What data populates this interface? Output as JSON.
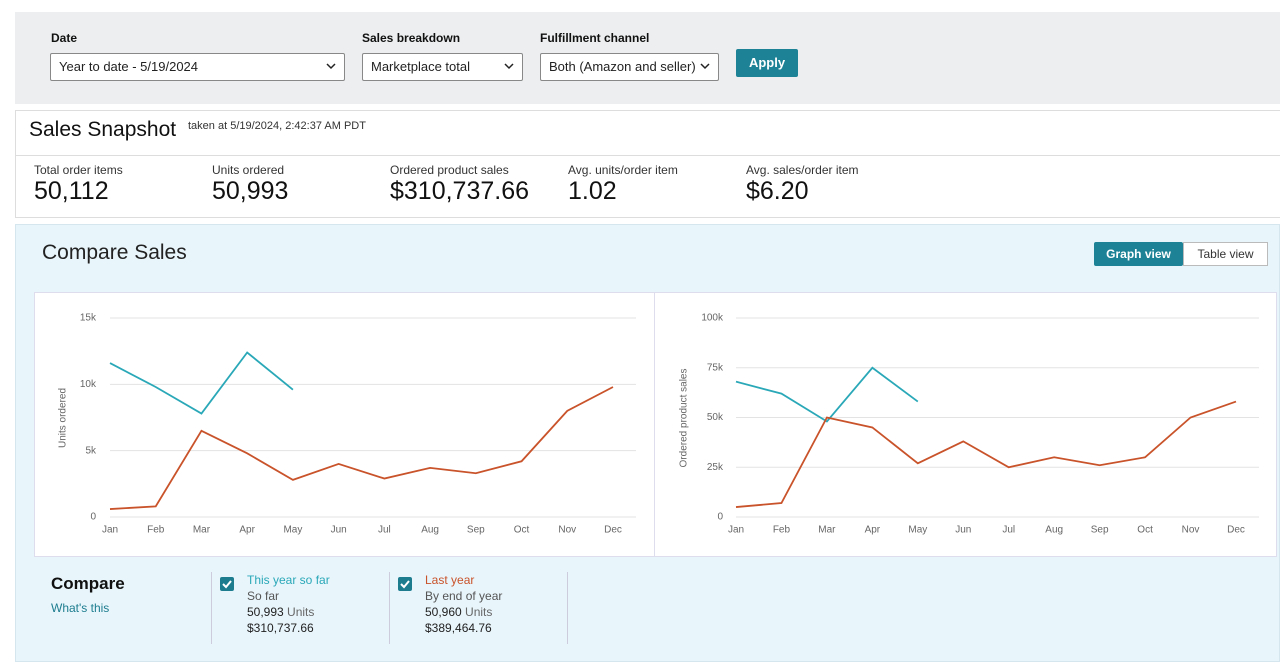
{
  "filters": {
    "date": {
      "label": "Date",
      "value": "Year to date - 5/19/2024"
    },
    "breakdown": {
      "label": "Sales breakdown",
      "value": "Marketplace total"
    },
    "channel": {
      "label": "Fulfillment channel",
      "value": "Both (Amazon and seller)"
    },
    "apply": "Apply"
  },
  "snapshot": {
    "title": "Sales Snapshot",
    "taken": "taken at 5/19/2024, 2:42:37 AM PDT",
    "metrics": [
      {
        "label": "Total order items",
        "value": "50,112"
      },
      {
        "label": "Units ordered",
        "value": "50,993"
      },
      {
        "label": "Ordered product sales",
        "value": "$310,737.66"
      },
      {
        "label": "Avg. units/order item",
        "value": "1.02"
      },
      {
        "label": "Avg. sales/order item",
        "value": "$6.20"
      }
    ]
  },
  "compare": {
    "title": "Compare Sales",
    "views": [
      "Graph view",
      "Table view"
    ],
    "footer": {
      "title": "Compare",
      "link": "What's this",
      "items": [
        {
          "sub": "So far",
          "units": "50,993",
          "units_word": "Units",
          "sales": "$310,737.66"
        },
        {
          "sub": "By end of year",
          "units": "50,960",
          "units_word": "Units",
          "sales": "$389,464.76"
        }
      ]
    }
  },
  "chart_data": [
    {
      "type": "line",
      "y_label": "Units ordered",
      "categories": [
        "Jan",
        "Feb",
        "Mar",
        "Apr",
        "May",
        "Jun",
        "Jul",
        "Aug",
        "Sep",
        "Oct",
        "Nov",
        "Dec"
      ],
      "ylim": [
        0,
        15000
      ],
      "yticks": [
        0,
        {
          "value": 5000,
          "label": "5k"
        },
        {
          "value": 10000,
          "label": "10k"
        },
        {
          "value": 15000,
          "label": "15k"
        }
      ],
      "grid": true,
      "series": [
        {
          "name": "This year so far",
          "color": "#2aa8b8",
          "values": [
            11600,
            9800,
            7800,
            12400,
            9600,
            null,
            null,
            null,
            null,
            null,
            null,
            null
          ]
        },
        {
          "name": "Last year",
          "color": "#c9532a",
          "values": [
            600,
            800,
            6500,
            4800,
            2800,
            4000,
            2900,
            3700,
            3300,
            4200,
            8000,
            9800
          ]
        }
      ]
    },
    {
      "type": "line",
      "y_label": "Ordered product sales",
      "categories": [
        "Jan",
        "Feb",
        "Mar",
        "Apr",
        "May",
        "Jun",
        "Jul",
        "Aug",
        "Sep",
        "Oct",
        "Nov",
        "Dec"
      ],
      "ylim": [
        0,
        100000
      ],
      "yticks": [
        0,
        {
          "value": 25000,
          "label": "25k"
        },
        {
          "value": 50000,
          "label": "50k"
        },
        {
          "value": 75000,
          "label": "75k"
        },
        {
          "value": 100000,
          "label": "100k"
        }
      ],
      "grid": true,
      "series": [
        {
          "color": "#2aa8b8",
          "values": [
            68000,
            62000,
            48000,
            75000,
            58000,
            null,
            null,
            null,
            null,
            null,
            null,
            null
          ]
        },
        {
          "color": "#c9532a",
          "values": [
            5000,
            7000,
            50000,
            45000,
            27000,
            38000,
            25000,
            30000,
            26000,
            30000,
            50000,
            58000
          ]
        }
      ]
    }
  ]
}
